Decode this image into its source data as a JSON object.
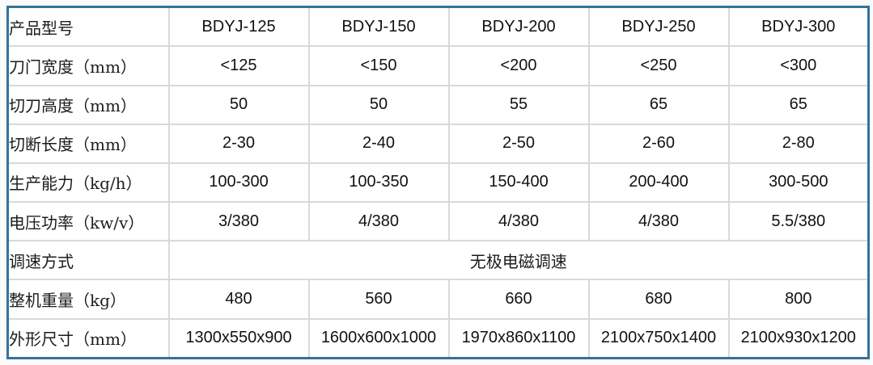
{
  "table": {
    "header_label": "产品型号",
    "models": [
      "BDYJ-125",
      "BDYJ-150",
      "BDYJ-200",
      "BDYJ-250",
      "BDYJ-300"
    ],
    "rows": [
      {
        "label": "刀门宽度（mm）",
        "values": [
          "<125",
          "<150",
          "<200",
          "<250",
          "<300"
        ]
      },
      {
        "label": "切刀高度（mm）",
        "values": [
          "50",
          "50",
          "55",
          "65",
          "65"
        ]
      },
      {
        "label": "切断长度（mm）",
        "values": [
          "2-30",
          "2-40",
          "2-50",
          "2-60",
          "2-80"
        ]
      },
      {
        "label": "生产能力（kg/h）",
        "values": [
          "100-300",
          "100-350",
          "150-400",
          "200-400",
          "300-500"
        ]
      },
      {
        "label": "电压功率（kw/v）",
        "values": [
          "3/380",
          "4/380",
          "4/380",
          "4/380",
          "5.5/380"
        ]
      },
      {
        "label": "调速方式",
        "merged_value": "无极电磁调速"
      },
      {
        "label": "整机重量（kg）",
        "values": [
          "480",
          "560",
          "660",
          "680",
          "800"
        ]
      },
      {
        "label": "外形尺寸（mm）",
        "values": [
          "1300x550x900",
          "1600x600x1000",
          "1970x860x1100",
          "2100x750x1400",
          "2100x930x1200"
        ]
      }
    ],
    "colors": {
      "outer_border": "#31749a",
      "grid_line": "#d9d9d9",
      "background": "#ffffff"
    }
  }
}
